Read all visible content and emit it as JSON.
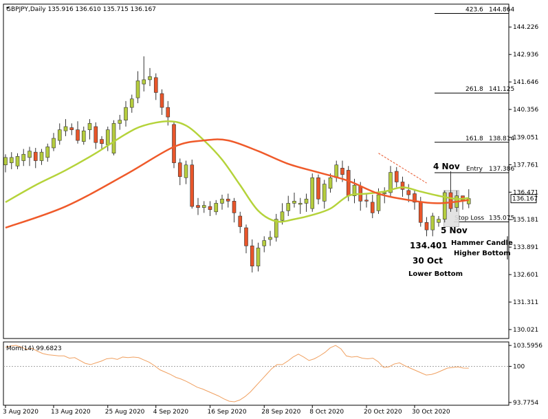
{
  "header": {
    "symbol_info": "GBPJPY,Daily  135.916 136.610 135.715 136.167"
  },
  "colors": {
    "bull": "#b5cc3e",
    "bear": "#e8552a",
    "ma_fast": "#b5d33a",
    "ma_slow": "#ef5a2a",
    "momentum": "#f0a060",
    "frame": "#000000"
  },
  "chart_data": [
    {
      "type": "candlestick",
      "title": "GBPJPY,Daily",
      "ylim": [
        129.6,
        145.3
      ],
      "y_ticks": [
        "144.226",
        "142.936",
        "141.646",
        "140.356",
        "139.051",
        "137.761",
        "136.471",
        "135.181",
        "133.891",
        "132.601",
        "131.311",
        "130.021"
      ],
      "x_ticks": [
        "3 Aug 2020",
        "13 Aug 2020",
        "25 Aug 2020",
        "4 Sep 2020",
        "16 Sep 2020",
        "28 Sep 2020",
        "8 Oct 2020",
        "20 Oct 2020",
        "30 Oct 2020"
      ],
      "current_price": "136.167",
      "candles": [
        [
          137.75,
          138.1,
          137.4,
          138.25
        ],
        [
          137.85,
          138.1,
          137.55,
          138.35
        ],
        [
          137.7,
          138.15,
          137.55,
          138.3
        ],
        [
          137.95,
          138.25,
          137.7,
          138.5
        ],
        [
          138.1,
          138.4,
          137.7,
          138.6
        ],
        [
          138.35,
          137.95,
          137.6,
          138.55
        ],
        [
          137.95,
          138.35,
          137.75,
          138.5
        ],
        [
          138.1,
          138.6,
          137.9,
          138.75
        ],
        [
          138.55,
          139.0,
          138.4,
          139.25
        ],
        [
          138.9,
          139.4,
          138.7,
          139.7
        ],
        [
          139.35,
          139.55,
          139.1,
          139.9
        ],
        [
          139.5,
          139.4,
          139.15,
          139.7
        ],
        [
          139.4,
          138.9,
          138.75,
          139.8
        ],
        [
          138.85,
          139.35,
          138.7,
          139.55
        ],
        [
          139.4,
          139.7,
          138.95,
          139.9
        ],
        [
          139.55,
          138.8,
          138.5,
          139.75
        ],
        [
          138.95,
          138.75,
          138.5,
          139.1
        ],
        [
          138.7,
          139.4,
          138.4,
          139.55
        ],
        [
          138.3,
          139.7,
          138.2,
          139.85
        ],
        [
          139.7,
          139.85,
          139.4,
          140.1
        ],
        [
          139.85,
          140.45,
          139.55,
          140.75
        ],
        [
          140.45,
          140.85,
          140.2,
          141.05
        ],
        [
          140.9,
          141.7,
          140.65,
          142.15
        ],
        [
          141.55,
          141.75,
          141.2,
          142.85
        ],
        [
          141.75,
          141.9,
          141.45,
          142.3
        ],
        [
          141.85,
          141.15,
          140.8,
          142.05
        ],
        [
          141.1,
          140.45,
          140.1,
          141.3
        ],
        [
          140.45,
          140.0,
          139.6,
          140.75
        ],
        [
          139.65,
          137.85,
          137.6,
          139.8
        ],
        [
          137.85,
          137.2,
          136.8,
          138.05
        ],
        [
          137.15,
          137.75,
          136.85,
          137.95
        ],
        [
          137.75,
          135.8,
          135.7,
          138.0
        ],
        [
          135.85,
          135.75,
          135.4,
          136.2
        ],
        [
          135.75,
          135.85,
          135.5,
          136.05
        ],
        [
          135.8,
          135.65,
          135.35,
          136.05
        ],
        [
          135.55,
          135.95,
          135.4,
          136.1
        ],
        [
          135.95,
          136.15,
          135.65,
          136.35
        ],
        [
          136.15,
          136.05,
          135.75,
          136.4
        ],
        [
          136.05,
          135.5,
          135.05,
          136.2
        ],
        [
          135.35,
          134.85,
          134.55,
          135.55
        ],
        [
          134.8,
          133.95,
          133.6,
          134.95
        ],
        [
          133.95,
          133.0,
          132.7,
          134.25
        ],
        [
          133.0,
          133.85,
          132.75,
          134.1
        ],
        [
          133.95,
          134.2,
          133.65,
          134.4
        ],
        [
          134.25,
          134.35,
          133.95,
          134.65
        ],
        [
          134.35,
          135.2,
          134.15,
          135.45
        ],
        [
          135.15,
          135.55,
          134.95,
          135.95
        ],
        [
          135.6,
          135.95,
          135.35,
          136.3
        ],
        [
          135.95,
          136.05,
          135.75,
          136.45
        ],
        [
          135.9,
          135.95,
          135.45,
          136.2
        ],
        [
          135.95,
          136.15,
          135.55,
          136.4
        ],
        [
          135.7,
          137.15,
          135.55,
          137.35
        ],
        [
          137.15,
          136.15,
          135.9,
          137.3
        ],
        [
          136.05,
          136.85,
          135.7,
          137.05
        ],
        [
          136.65,
          137.15,
          136.45,
          137.35
        ],
        [
          137.15,
          137.75,
          136.95,
          137.95
        ],
        [
          137.6,
          137.3,
          136.95,
          137.95
        ],
        [
          137.5,
          136.3,
          136.05,
          137.7
        ],
        [
          136.3,
          136.8,
          135.95,
          137.1
        ],
        [
          136.75,
          136.05,
          135.6,
          136.95
        ],
        [
          136.1,
          136.05,
          135.75,
          136.4
        ],
        [
          136.0,
          135.5,
          135.25,
          136.35
        ],
        [
          135.6,
          136.35,
          135.45,
          136.65
        ],
        [
          136.4,
          136.45,
          135.95,
          136.7
        ],
        [
          136.45,
          137.4,
          136.25,
          137.7
        ],
        [
          137.45,
          136.95,
          136.7,
          137.65
        ],
        [
          136.95,
          136.6,
          136.25,
          137.2
        ],
        [
          136.55,
          136.35,
          136.0,
          136.85
        ],
        [
          136.4,
          136.0,
          135.65,
          136.55
        ],
        [
          136.0,
          135.05,
          134.85,
          136.25
        ],
        [
          135.05,
          134.7,
          134.4,
          135.3
        ],
        [
          134.7,
          135.35,
          134.4,
          135.5
        ],
        [
          135.05,
          135.2,
          134.85,
          135.35
        ],
        [
          135.2,
          136.45,
          135.05,
          136.55
        ],
        [
          136.45,
          135.7,
          135.55,
          137.45
        ],
        [
          135.75,
          136.3,
          135.55,
          136.55
        ],
        [
          136.3,
          136.1,
          135.65,
          136.3
        ],
        [
          135.92,
          136.17,
          135.72,
          136.61
        ]
      ],
      "moving_averages": [
        {
          "color": "ma_fast",
          "values": [
            [
              0,
              136.0
            ],
            [
              5,
              136.8
            ],
            [
              10,
              137.5
            ],
            [
              15,
              138.3
            ],
            [
              20,
              139.2
            ],
            [
              23,
              139.6
            ],
            [
              27,
              139.8
            ],
            [
              30,
              139.6
            ],
            [
              33,
              138.9
            ],
            [
              36,
              138.0
            ],
            [
              39,
              136.8
            ],
            [
              42,
              135.6
            ],
            [
              45,
              135.1
            ],
            [
              48,
              135.2
            ],
            [
              51,
              135.4
            ],
            [
              54,
              135.7
            ],
            [
              57,
              136.3
            ],
            [
              60,
              136.4
            ],
            [
              63,
              136.5
            ],
            [
              66,
              136.7
            ],
            [
              69,
              136.5
            ],
            [
              72,
              136.3
            ],
            [
              75,
              136.15
            ],
            [
              77,
              136.2
            ]
          ]
        },
        {
          "color": "ma_slow",
          "values": [
            [
              0,
              134.8
            ],
            [
              10,
              135.8
            ],
            [
              20,
              137.3
            ],
            [
              28,
              138.6
            ],
            [
              33,
              138.9
            ],
            [
              37,
              138.9
            ],
            [
              42,
              138.4
            ],
            [
              47,
              137.8
            ],
            [
              52,
              137.4
            ],
            [
              57,
              137.0
            ],
            [
              62,
              136.4
            ],
            [
              67,
              136.1
            ],
            [
              72,
              135.95
            ],
            [
              77,
              136.1
            ]
          ]
        }
      ],
      "fibonacci": [
        {
          "ratio": "423.6",
          "price": "144.864",
          "y": 144.864
        },
        {
          "ratio": "261.8",
          "price": "141.125",
          "y": 141.125
        },
        {
          "ratio": "161.8",
          "price": "138.814",
          "y": 138.814
        },
        {
          "ratio": "Entry",
          "price": "137.386",
          "y": 137.386
        },
        {
          "ratio": "Stop Loss",
          "price": "135.075",
          "y": 135.075
        }
      ],
      "annotations": [
        {
          "text": "4 Nov"
        },
        {
          "text": "5 Nov"
        },
        {
          "text": "134.401"
        },
        {
          "text": "30 Oct"
        },
        {
          "text": "Lower Bottom"
        },
        {
          "text": "Hammer Candle"
        },
        {
          "text": "Higher Bottom"
        }
      ]
    },
    {
      "type": "line",
      "title": "Mom(14) 99.6823",
      "ylim": [
        93.3,
        104.2
      ],
      "y_ticks": [
        "103.5956",
        "100",
        "93.7754"
      ],
      "reference_level": 100,
      "values": [
        103.3,
        103.5,
        103.6,
        103.3,
        102.9,
        103.1,
        102.6,
        102.2,
        102.0,
        101.9,
        101.8,
        101.8,
        101.4,
        101.5,
        101.0,
        100.5,
        100.3,
        100.6,
        100.9,
        101.3,
        101.4,
        101.2,
        101.6,
        101.5,
        101.6,
        101.5,
        101.1,
        100.7,
        100.1,
        99.4,
        99.0,
        98.6,
        98.1,
        97.8,
        97.4,
        96.9,
        96.4,
        96.1,
        95.7,
        95.3,
        94.9,
        94.4,
        94.0,
        93.9,
        94.2,
        94.8,
        95.6,
        96.6,
        97.6,
        98.6,
        99.6,
        100.3,
        100.3,
        100.9,
        101.6,
        102.1,
        101.6,
        101.0,
        101.3,
        101.8,
        102.4,
        103.2,
        103.6,
        103.0,
        101.8,
        101.6,
        101.7,
        101.4,
        101.3,
        101.4,
        100.8,
        99.8,
        99.9,
        100.4,
        100.6,
        100.1,
        99.7,
        99.3,
        98.9,
        98.5,
        98.6,
        98.9,
        99.3,
        99.7,
        99.8,
        99.9,
        99.7,
        99.68
      ]
    }
  ]
}
